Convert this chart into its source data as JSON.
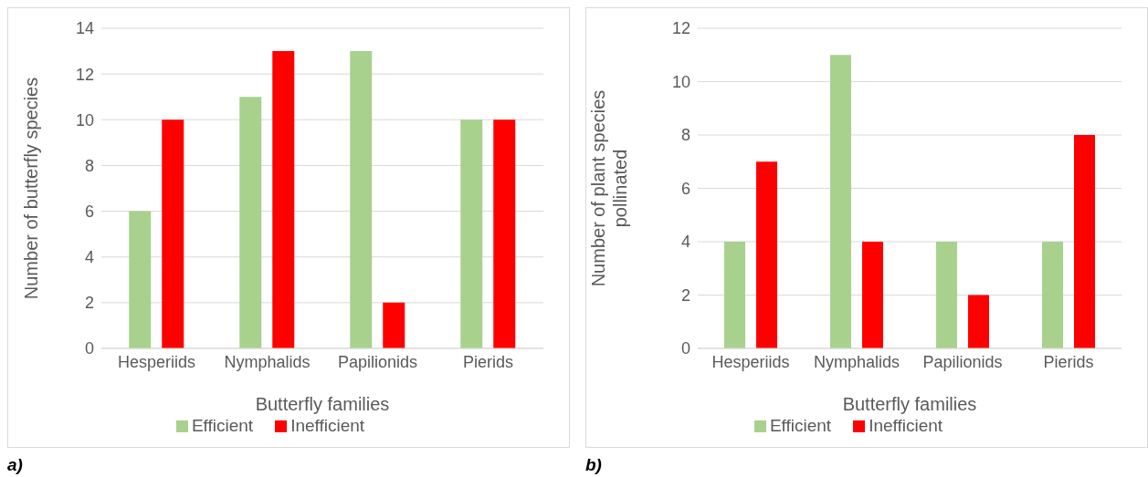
{
  "chart_data": [
    {
      "type": "bar",
      "xlabel": "Butterfly families",
      "ylabel": "Number of butterfly species",
      "categories": [
        "Hesperiids",
        "Nymphalids",
        "Papilionids",
        "Pierids"
      ],
      "series": [
        {
          "name": "Efficient",
          "color": "#a9d18e",
          "values": [
            6,
            11,
            13,
            10
          ]
        },
        {
          "name": "Inefficient",
          "color": "#ff0000",
          "values": [
            10,
            13,
            2,
            10
          ]
        }
      ],
      "ylim": [
        0,
        14
      ],
      "yticks": [
        0,
        2,
        4,
        6,
        8,
        10,
        12,
        14
      ],
      "grid": "y",
      "legend": "bottom",
      "annotations": [
        "a)"
      ]
    },
    {
      "type": "bar",
      "xlabel": "Butterfly families",
      "ylabel": "Number of plant species pollinated",
      "categories": [
        "Hesperiids",
        "Nymphalids",
        "Papilionids",
        "Pierids"
      ],
      "series": [
        {
          "name": "Efficient",
          "color": "#a9d18e",
          "values": [
            4,
            11,
            4,
            4
          ]
        },
        {
          "name": "Inefficient",
          "color": "#ff0000",
          "values": [
            7,
            4,
            2,
            8
          ]
        }
      ],
      "ylim": [
        0,
        12
      ],
      "yticks": [
        0,
        2,
        4,
        6,
        8,
        10,
        12
      ],
      "grid": "y",
      "legend": "bottom",
      "annotations": [
        "b)"
      ]
    }
  ]
}
